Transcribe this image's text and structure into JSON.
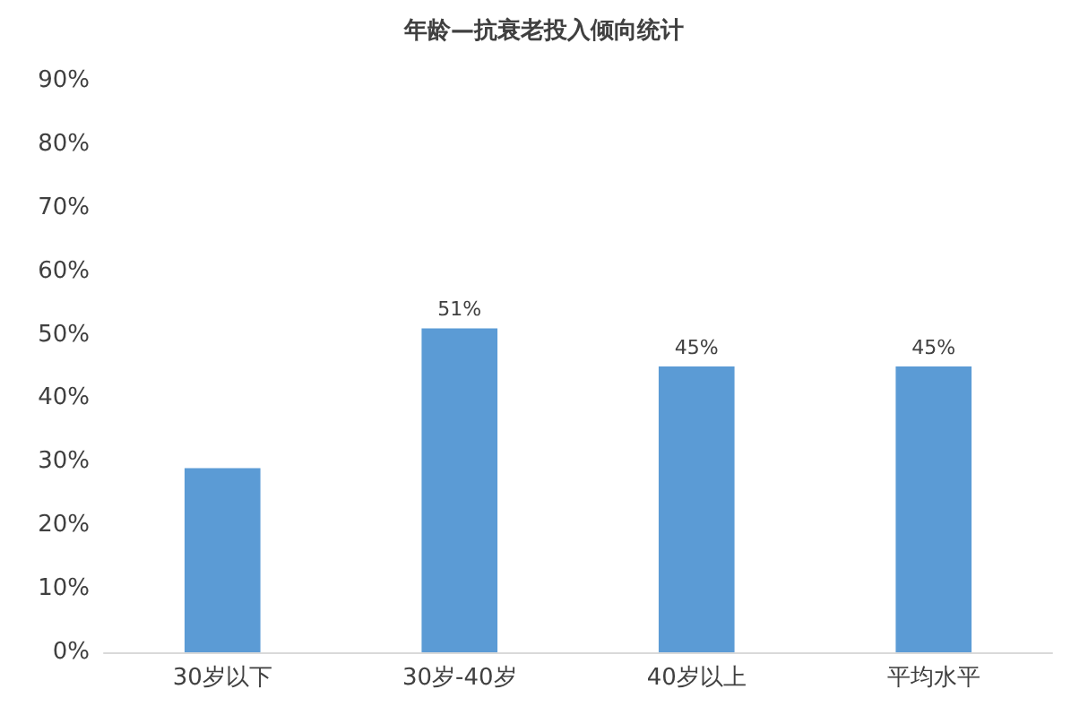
{
  "chart_data": {
    "type": "bar",
    "title": "年龄—抗衰老投入倾向统计",
    "categories": [
      "30岁以下",
      "30岁-40岁",
      "40岁以上",
      "平均水平"
    ],
    "values": [
      29,
      51,
      45,
      45
    ],
    "value_labels": [
      null,
      "51%",
      "45%",
      "45%"
    ],
    "color": "#5b9bd5",
    "ylim": [
      0,
      90
    ],
    "yticks": [
      {
        "value": 0,
        "label": "0%"
      },
      {
        "value": 10,
        "label": "10%"
      },
      {
        "value": 20,
        "label": "20%"
      },
      {
        "value": 30,
        "label": "30%"
      },
      {
        "value": 40,
        "label": "40%"
      },
      {
        "value": 50,
        "label": "50%"
      },
      {
        "value": 60,
        "label": "60%"
      },
      {
        "value": 70,
        "label": "70%"
      },
      {
        "value": 80,
        "label": "80%"
      },
      {
        "value": 90,
        "label": "90%"
      }
    ],
    "grid": false
  }
}
